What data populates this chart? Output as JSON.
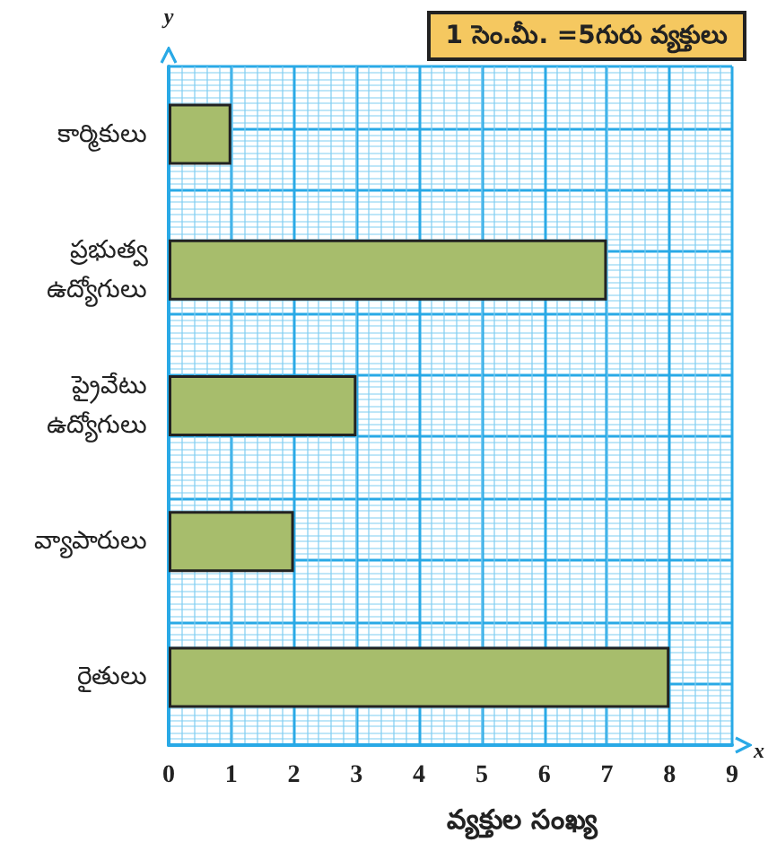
{
  "chart_data": {
    "type": "bar",
    "orientation": "horizontal",
    "categories": [
      "కార్మికులు",
      "ప్రభుత్వ ఉద్యోగులు",
      "ప్రైవేటు ఉద్యోగులు",
      "వ్యాపారులు",
      "రైతులు"
    ],
    "values": [
      1,
      7,
      3,
      2,
      8
    ],
    "color": "#a7bd6c",
    "xlim": [
      0,
      9
    ],
    "xticks": [
      0,
      1,
      2,
      3,
      4,
      5,
      6,
      7,
      8,
      9
    ],
    "xlabel": "వ్యక్తుల సంఖ్య",
    "ylabel": "y",
    "grid": true,
    "annotations": [
      "1 సెం.మీ. =5గురు వ్యక్తులు",
      "x"
    ]
  }
}
